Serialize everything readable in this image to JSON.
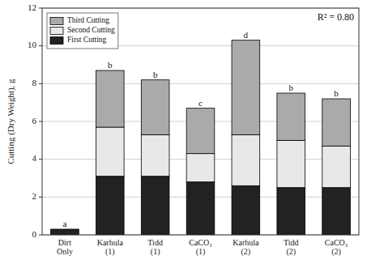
{
  "chart_data": {
    "type": "bar",
    "stacked": true,
    "categories": [
      "Dirt\nOnly",
      "Karhula\n(1)",
      "Tidd\n(1)",
      "CaCO₃\n(1)",
      "Karhula\n(2)",
      "Tidd\n(2)",
      "CaCO₃\n(2)"
    ],
    "series": [
      {
        "name": "First Cutting",
        "color": "#222222",
        "values": [
          0.3,
          3.1,
          3.1,
          2.8,
          2.6,
          2.5,
          2.5
        ]
      },
      {
        "name": "Second Cutting",
        "color": "#e8e8e8",
        "values": [
          0.0,
          2.6,
          2.2,
          1.5,
          2.7,
          2.5,
          2.2
        ]
      },
      {
        "name": "Third Cutting",
        "color": "#aaaaaa",
        "values": [
          0.0,
          3.0,
          2.9,
          2.4,
          5.0,
          2.5,
          2.5
        ]
      }
    ],
    "bar_labels": [
      "a",
      "b",
      "b",
      "c",
      "d",
      "b",
      "b"
    ],
    "annotation": "R² = 0.80",
    "ylabel": "Cutting (Dry Weight), g",
    "ylim": [
      0,
      12
    ],
    "yticks": [
      0,
      2,
      4,
      6,
      8,
      10,
      12
    ],
    "grid": true,
    "legend": "upper left"
  }
}
